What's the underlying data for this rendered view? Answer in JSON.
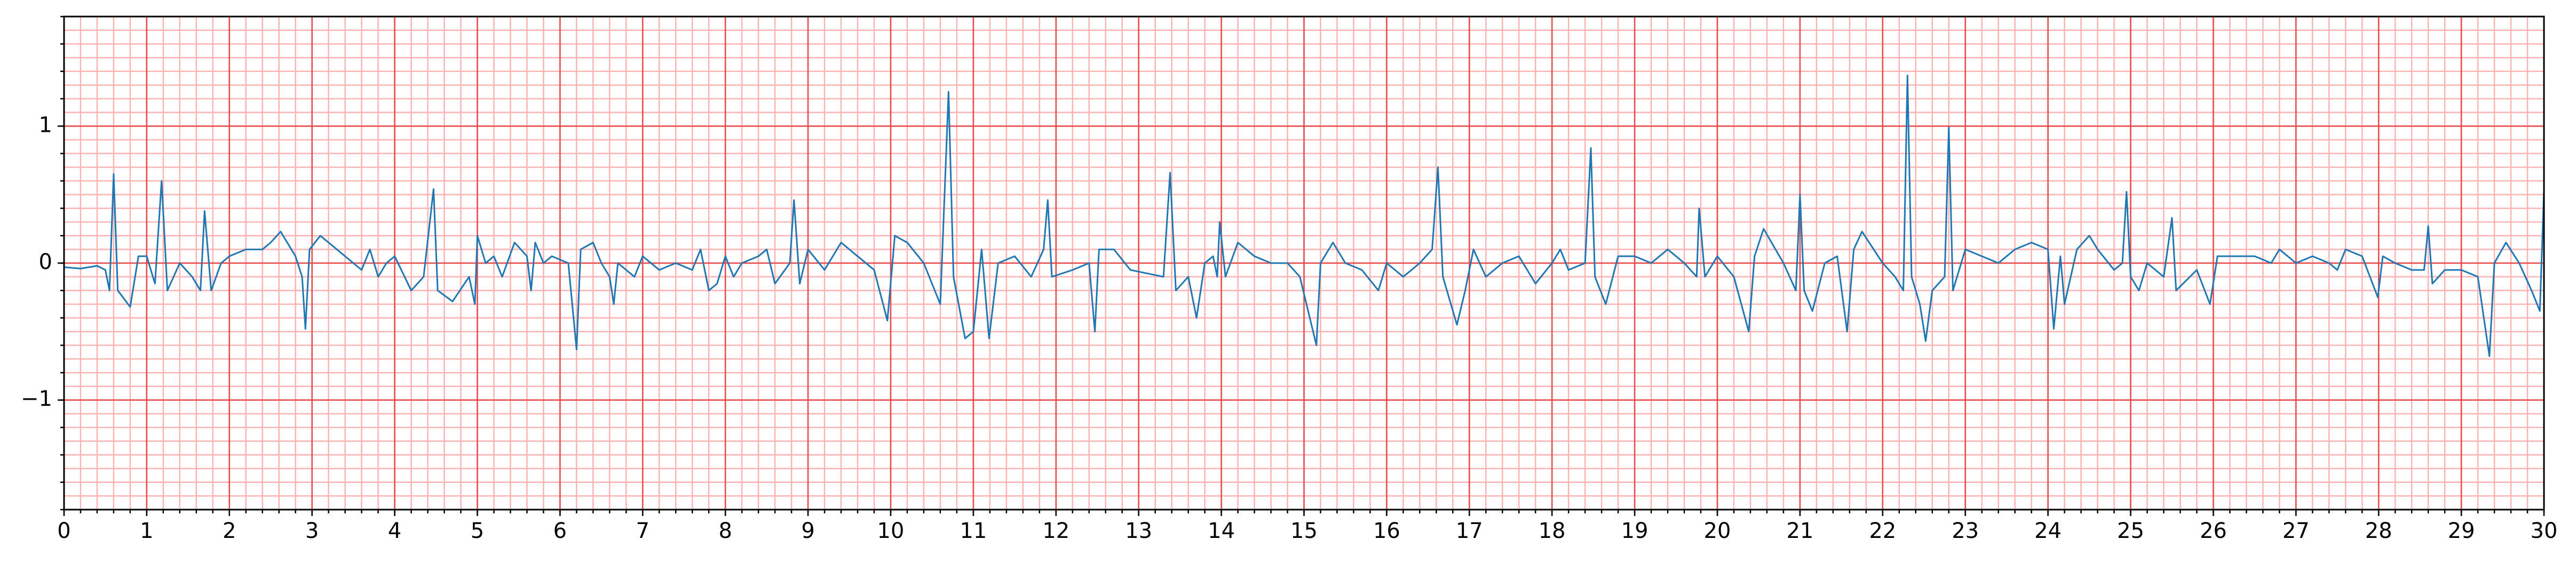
{
  "chart_data": {
    "type": "line",
    "x": [
      0,
      0.2,
      0.4,
      0.5,
      0.55,
      0.6,
      0.65,
      0.8,
      0.9,
      1.0,
      1.1,
      1.18,
      1.25,
      1.4,
      1.55,
      1.65,
      1.7,
      1.78,
      1.9,
      2.0,
      2.2,
      2.4,
      2.5,
      2.62,
      2.8,
      2.88,
      2.92,
      2.97,
      3.1,
      3.3,
      3.5,
      3.6,
      3.7,
      3.8,
      3.9,
      4.0,
      4.2,
      4.35,
      4.47,
      4.52,
      4.7,
      4.9,
      4.97,
      5.0,
      5.1,
      5.2,
      5.3,
      5.45,
      5.6,
      5.65,
      5.7,
      5.8,
      5.9,
      6.1,
      6.2,
      6.25,
      6.4,
      6.5,
      6.6,
      6.65,
      6.7,
      6.9,
      7.0,
      7.2,
      7.4,
      7.6,
      7.7,
      7.8,
      7.9,
      8.0,
      8.1,
      8.2,
      8.4,
      8.5,
      8.6,
      8.78,
      8.83,
      8.9,
      9.0,
      9.2,
      9.4,
      9.6,
      9.8,
      9.96,
      10.05,
      10.2,
      10.4,
      10.6,
      10.7,
      10.76,
      10.9,
      11.0,
      11.1,
      11.19,
      11.3,
      11.5,
      11.7,
      11.85,
      11.9,
      11.95,
      12.2,
      12.4,
      12.47,
      12.52,
      12.7,
      12.9,
      13.3,
      13.38,
      13.45,
      13.6,
      13.7,
      13.8,
      13.9,
      13.95,
      13.98,
      14.05,
      14.2,
      14.4,
      14.6,
      14.8,
      14.95,
      15.15,
      15.2,
      15.35,
      15.5,
      15.7,
      15.9,
      16.0,
      16.2,
      16.4,
      16.55,
      16.62,
      16.68,
      16.85,
      16.95,
      17.05,
      17.2,
      17.4,
      17.6,
      17.8,
      18.0,
      18.1,
      18.2,
      18.4,
      18.47,
      18.52,
      18.65,
      18.8,
      19.0,
      19.2,
      19.4,
      19.6,
      19.75,
      19.78,
      19.85,
      20.0,
      20.2,
      20.38,
      20.45,
      20.56,
      20.8,
      20.95,
      21.0,
      21.05,
      21.15,
      21.3,
      21.45,
      21.57,
      21.65,
      21.75,
      22.0,
      22.15,
      22.25,
      22.3,
      22.35,
      22.45,
      22.52,
      22.6,
      22.75,
      22.8,
      22.85,
      22.9,
      23.0,
      23.2,
      23.4,
      23.6,
      23.8,
      24.0,
      24.07,
      24.15,
      24.2,
      24.35,
      24.5,
      24.6,
      24.8,
      24.9,
      24.95,
      25.0,
      25.1,
      25.2,
      25.4,
      25.5,
      25.55,
      25.8,
      25.96,
      26.05,
      26.2,
      26.5,
      26.7,
      26.8,
      27.0,
      27.2,
      27.4,
      27.5,
      27.6,
      27.8,
      27.99,
      28.05,
      28.2,
      28.4,
      28.55,
      28.6,
      28.65,
      28.8,
      29.0,
      29.2,
      29.34,
      29.4,
      29.54,
      29.7,
      29.85,
      29.95,
      30.0
    ],
    "values": [
      -0.03,
      -0.04,
      -0.02,
      -0.05,
      -0.2,
      0.65,
      -0.2,
      -0.32,
      0.05,
      0.05,
      -0.15,
      0.6,
      -0.2,
      0.0,
      -0.1,
      -0.2,
      0.38,
      -0.2,
      0.0,
      0.05,
      0.1,
      0.1,
      0.15,
      0.23,
      0.05,
      -0.1,
      -0.48,
      0.1,
      0.2,
      0.1,
      0.0,
      -0.05,
      0.1,
      -0.1,
      0.0,
      0.05,
      -0.2,
      -0.1,
      0.54,
      -0.2,
      -0.28,
      -0.1,
      -0.3,
      0.2,
      0.0,
      0.05,
      -0.1,
      0.15,
      0.05,
      -0.2,
      0.15,
      0.0,
      0.05,
      0.0,
      -0.63,
      0.1,
      0.15,
      0.0,
      -0.1,
      -0.3,
      0.0,
      -0.1,
      0.05,
      -0.05,
      0.0,
      -0.05,
      0.1,
      -0.2,
      -0.15,
      0.05,
      -0.1,
      0.0,
      0.05,
      0.1,
      -0.15,
      0.0,
      0.46,
      -0.15,
      0.1,
      -0.05,
      0.15,
      0.05,
      -0.05,
      -0.42,
      0.2,
      0.15,
      0.0,
      -0.3,
      1.25,
      -0.1,
      -0.55,
      -0.5,
      0.1,
      -0.55,
      0.0,
      0.05,
      -0.1,
      0.1,
      0.46,
      -0.1,
      -0.05,
      0.0,
      -0.5,
      0.1,
      0.1,
      -0.05,
      -0.1,
      0.66,
      -0.2,
      -0.1,
      -0.4,
      0.0,
      0.05,
      -0.1,
      0.3,
      -0.1,
      0.15,
      0.05,
      0.0,
      0.0,
      -0.1,
      -0.6,
      0.0,
      0.15,
      0.0,
      -0.05,
      -0.2,
      0.0,
      -0.1,
      0.0,
      0.1,
      0.7,
      -0.1,
      -0.45,
      -0.2,
      0.1,
      -0.1,
      0.0,
      0.05,
      -0.15,
      0.0,
      0.1,
      -0.05,
      0.0,
      0.84,
      -0.1,
      -0.3,
      0.05,
      0.05,
      0.0,
      0.1,
      0.0,
      -0.1,
      0.4,
      -0.1,
      0.05,
      -0.1,
      -0.5,
      0.05,
      0.25,
      0.0,
      -0.2,
      0.5,
      -0.2,
      -0.35,
      0.0,
      0.05,
      -0.5,
      0.1,
      0.23,
      0.0,
      -0.1,
      -0.2,
      1.37,
      -0.1,
      -0.3,
      -0.57,
      -0.2,
      -0.1,
      0.99,
      -0.2,
      -0.1,
      0.1,
      0.05,
      0.0,
      0.1,
      0.15,
      0.1,
      -0.48,
      0.05,
      -0.3,
      0.1,
      0.2,
      0.1,
      -0.05,
      0.0,
      0.52,
      -0.1,
      -0.2,
      0.0,
      -0.1,
      0.33,
      -0.2,
      -0.05,
      -0.3,
      0.05,
      0.05,
      0.05,
      0.0,
      0.1,
      0.0,
      0.05,
      0.0,
      -0.05,
      0.1,
      0.05,
      -0.25,
      0.05,
      0.0,
      -0.05,
      -0.05,
      0.27,
      -0.15,
      -0.05,
      -0.05,
      -0.1,
      -0.68,
      0.0,
      0.15,
      0.0,
      -0.2,
      -0.35,
      0.53
    ],
    "color": "#1f77b4",
    "xlim": [
      0,
      30
    ],
    "xticks": [
      0,
      1,
      2,
      3,
      4,
      5,
      6,
      7,
      8,
      9,
      10,
      11,
      12,
      13,
      14,
      15,
      16,
      17,
      18,
      19,
      20,
      21,
      22,
      23,
      24,
      25,
      26,
      27,
      28,
      29,
      30
    ],
    "ylim": [
      -1.8,
      1.8
    ],
    "yticks": [
      {
        "value": -1,
        "label": "−1"
      },
      0,
      1
    ],
    "xminor": 0.2,
    "yminor": 0.1,
    "grid": true
  }
}
